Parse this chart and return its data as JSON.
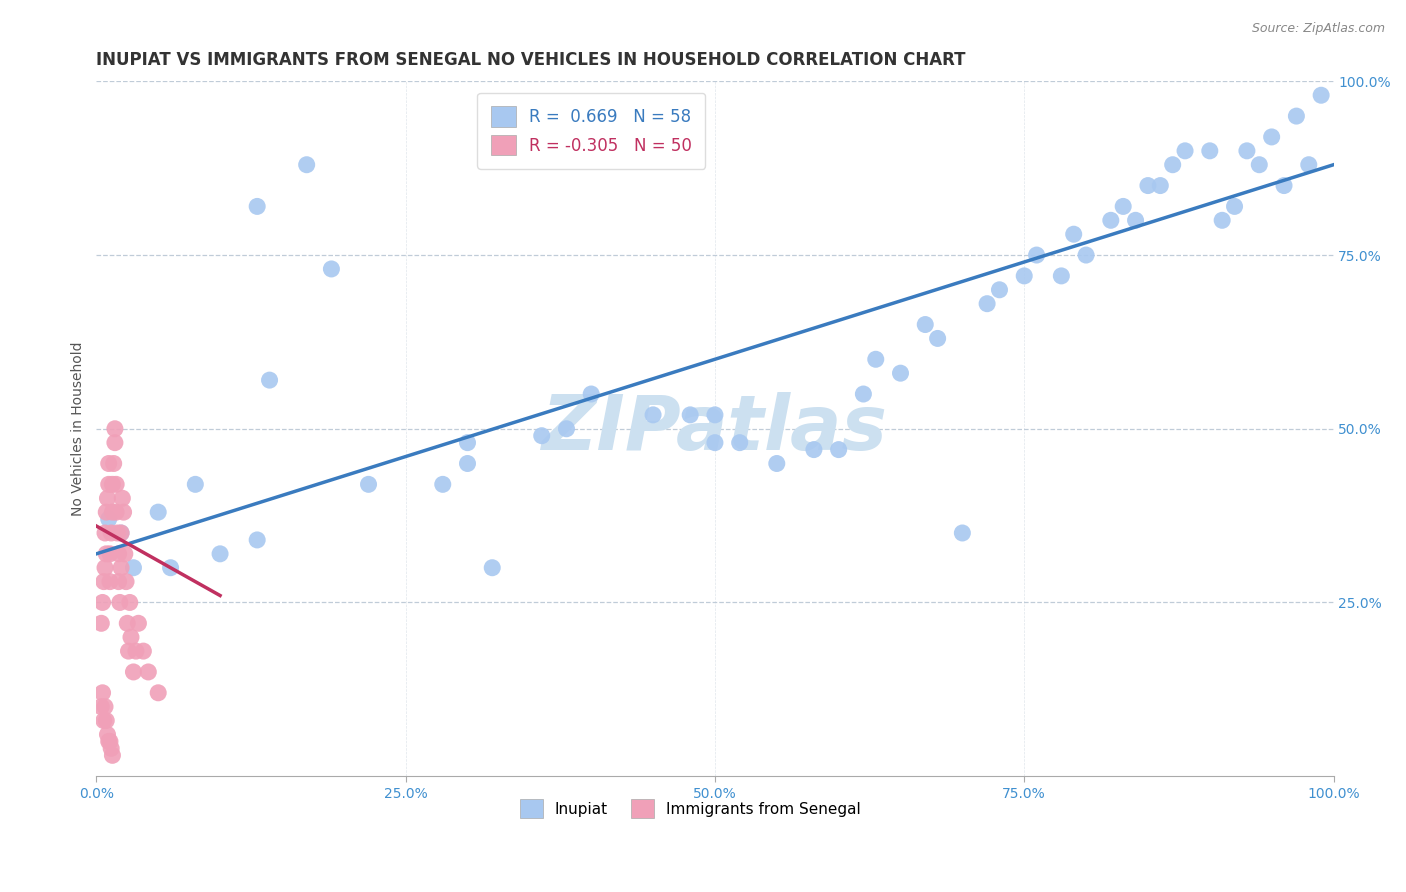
{
  "title": "INUPIAT VS IMMIGRANTS FROM SENEGAL NO VEHICLES IN HOUSEHOLD CORRELATION CHART",
  "source": "Source: ZipAtlas.com",
  "ylabel": "No Vehicles in Household",
  "watermark": "ZIPatlas",
  "r_inupiat": 0.669,
  "n_inupiat": 58,
  "r_senegal": -0.305,
  "n_senegal": 50,
  "inupiat_color": "#a8c8f0",
  "senegal_color": "#f0a0b8",
  "line_inupiat_color": "#3a7bbf",
  "line_senegal_color": "#c03060",
  "xlim": [
    0,
    1
  ],
  "ylim": [
    0,
    1
  ],
  "xtick_labels": [
    "0.0%",
    "25.0%",
    "50.0%",
    "75.0%",
    "100.0%"
  ],
  "xtick_vals": [
    0.0,
    0.25,
    0.5,
    0.75,
    1.0
  ],
  "ytick_labels": [
    "25.0%",
    "50.0%",
    "75.0%",
    "100.0%"
  ],
  "ytick_vals": [
    0.25,
    0.5,
    0.75,
    1.0
  ],
  "inupiat_x": [
    0.13,
    0.19,
    0.01,
    0.05,
    0.08,
    0.14,
    0.22,
    0.28,
    0.3,
    0.3,
    0.32,
    0.36,
    0.38,
    0.4,
    0.45,
    0.48,
    0.5,
    0.5,
    0.52,
    0.55,
    0.58,
    0.6,
    0.62,
    0.63,
    0.65,
    0.67,
    0.68,
    0.7,
    0.72,
    0.73,
    0.75,
    0.76,
    0.78,
    0.79,
    0.8,
    0.82,
    0.83,
    0.84,
    0.85,
    0.86,
    0.87,
    0.88,
    0.9,
    0.91,
    0.92,
    0.93,
    0.94,
    0.95,
    0.96,
    0.97,
    0.98,
    0.99,
    0.02,
    0.03,
    0.06,
    0.1,
    0.13,
    0.17
  ],
  "inupiat_y": [
    0.82,
    0.73,
    0.37,
    0.38,
    0.42,
    0.57,
    0.42,
    0.42,
    0.45,
    0.48,
    0.3,
    0.49,
    0.5,
    0.55,
    0.52,
    0.52,
    0.52,
    0.48,
    0.48,
    0.45,
    0.47,
    0.47,
    0.55,
    0.6,
    0.58,
    0.65,
    0.63,
    0.35,
    0.68,
    0.7,
    0.72,
    0.75,
    0.72,
    0.78,
    0.75,
    0.8,
    0.82,
    0.8,
    0.85,
    0.85,
    0.88,
    0.9,
    0.9,
    0.8,
    0.82,
    0.9,
    0.88,
    0.92,
    0.85,
    0.95,
    0.88,
    0.98,
    0.35,
    0.3,
    0.3,
    0.32,
    0.34,
    0.88
  ],
  "senegal_x": [
    0.004,
    0.005,
    0.006,
    0.007,
    0.007,
    0.008,
    0.008,
    0.009,
    0.01,
    0.01,
    0.011,
    0.011,
    0.012,
    0.013,
    0.013,
    0.014,
    0.015,
    0.015,
    0.016,
    0.016,
    0.017,
    0.018,
    0.018,
    0.019,
    0.02,
    0.02,
    0.021,
    0.022,
    0.023,
    0.024,
    0.025,
    0.026,
    0.027,
    0.028,
    0.03,
    0.032,
    0.034,
    0.038,
    0.042,
    0.05,
    0.004,
    0.005,
    0.006,
    0.007,
    0.008,
    0.009,
    0.01,
    0.011,
    0.012,
    0.013
  ],
  "senegal_y": [
    0.22,
    0.25,
    0.28,
    0.3,
    0.35,
    0.32,
    0.38,
    0.4,
    0.42,
    0.45,
    0.28,
    0.32,
    0.35,
    0.38,
    0.42,
    0.45,
    0.48,
    0.5,
    0.42,
    0.38,
    0.35,
    0.32,
    0.28,
    0.25,
    0.3,
    0.35,
    0.4,
    0.38,
    0.32,
    0.28,
    0.22,
    0.18,
    0.25,
    0.2,
    0.15,
    0.18,
    0.22,
    0.18,
    0.15,
    0.12,
    0.1,
    0.12,
    0.08,
    0.1,
    0.08,
    0.06,
    0.05,
    0.05,
    0.04,
    0.03
  ],
  "title_fontsize": 12,
  "axis_label_fontsize": 10,
  "tick_fontsize": 10,
  "legend_fontsize": 12,
  "background_color": "#ffffff",
  "grid_color": "#c0ccd8",
  "watermark_color": "#cce0f0",
  "watermark_fontsize": 55,
  "right_ytick_color": "#4090d0",
  "inupiat_line_x0": 0.0,
  "inupiat_line_y0": 0.32,
  "inupiat_line_x1": 1.0,
  "inupiat_line_y1": 0.88,
  "senegal_line_x0": 0.0,
  "senegal_line_y0": 0.36,
  "senegal_line_x1": 0.1,
  "senegal_line_y1": 0.26
}
